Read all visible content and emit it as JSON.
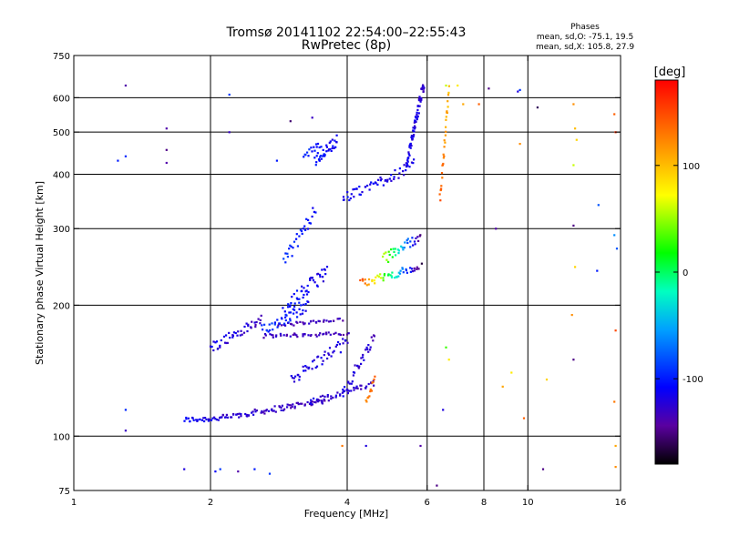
{
  "chart_data": {
    "type": "scatter",
    "title": "Tromsø 20141102 22:54:00–22:55:43",
    "subtitle": "RwPretec (8p)",
    "xlabel": "Frequency [MHz]",
    "ylabel": "Stationary phase Virtual Height [km]",
    "x_scale": "log",
    "y_scale": "log",
    "xlim": [
      1,
      16
    ],
    "ylim": [
      75,
      750
    ],
    "x_ticks": [
      1,
      2,
      4,
      6,
      8,
      10,
      16
    ],
    "y_ticks": [
      75,
      100,
      200,
      300,
      400,
      500,
      600,
      750
    ],
    "x_grid": [
      2,
      4,
      6,
      8,
      10
    ],
    "y_grid": [
      100,
      200,
      300,
      400,
      500,
      600
    ],
    "grid": true,
    "phase_info": {
      "heading": "Phases",
      "line1": "mean, sd,O: -75.1, 19.5",
      "line2": "mean, sd,X: 105.8, 27.9"
    },
    "colorbar": {
      "label": "[deg]",
      "range": [
        -180,
        180
      ],
      "ticks": [
        100,
        0,
        -100
      ],
      "colormap": "rainbow"
    },
    "clusters": [
      {
        "f0": 1.75,
        "f1": 2.1,
        "h0": 109,
        "h1": 110,
        "p0": -110,
        "p1": -120,
        "n": 30,
        "j": 0.015
      },
      {
        "f0": 2.1,
        "f1": 3.6,
        "h0": 110,
        "h1": 121,
        "p0": -125,
        "p1": -135,
        "n": 85,
        "j": 0.015
      },
      {
        "f0": 3.3,
        "f1": 4.6,
        "h0": 120,
        "h1": 132,
        "p0": -120,
        "p1": -130,
        "n": 45,
        "j": 0.015
      },
      {
        "f0": 3.0,
        "f1": 4.0,
        "h0": 135,
        "h1": 165,
        "p0": -115,
        "p1": -125,
        "n": 45,
        "j": 0.03
      },
      {
        "f0": 3.9,
        "f1": 4.6,
        "h0": 125,
        "h1": 170,
        "p0": -120,
        "p1": -130,
        "n": 35,
        "j": 0.03
      },
      {
        "f0": 4.4,
        "f1": 4.6,
        "h0": 120,
        "h1": 135,
        "p0": 120,
        "p1": 150,
        "n": 12,
        "j": 0.02
      },
      {
        "f0": 2.0,
        "f1": 2.6,
        "h0": 160,
        "h1": 185,
        "p0": -115,
        "p1": -130,
        "n": 45,
        "j": 0.03
      },
      {
        "f0": 2.6,
        "f1": 4.0,
        "h0": 170,
        "h1": 172,
        "p0": -130,
        "p1": -135,
        "n": 45,
        "j": 0.01
      },
      {
        "f0": 2.8,
        "f1": 3.9,
        "h0": 180,
        "h1": 185,
        "p0": -130,
        "p1": -135,
        "n": 35,
        "j": 0.01
      },
      {
        "f0": 2.6,
        "f1": 3.3,
        "h0": 175,
        "h1": 200,
        "p0": -90,
        "p1": -110,
        "n": 40,
        "j": 0.03
      },
      {
        "f0": 2.9,
        "f1": 3.6,
        "h0": 195,
        "h1": 240,
        "p0": -100,
        "p1": -120,
        "n": 50,
        "j": 0.04
      },
      {
        "f0": 2.9,
        "f1": 3.4,
        "h0": 250,
        "h1": 330,
        "p0": -90,
        "p1": -110,
        "n": 30,
        "j": 0.04
      },
      {
        "f0": 3.4,
        "f1": 3.8,
        "h0": 430,
        "h1": 480,
        "p0": -100,
        "p1": -115,
        "n": 35,
        "j": 0.03
      },
      {
        "f0": 3.2,
        "f1": 3.5,
        "h0": 440,
        "h1": 470,
        "p0": -95,
        "p1": -105,
        "n": 15,
        "j": 0.02
      },
      {
        "f0": 4.3,
        "f1": 5.8,
        "h0": 225,
        "h1": 245,
        "p0": 150,
        "p1": -160,
        "n": 50,
        "j": 0.02
      },
      {
        "f0": 4.8,
        "f1": 5.8,
        "h0": 255,
        "h1": 290,
        "p0": 60,
        "p1": -150,
        "n": 35,
        "j": 0.03
      },
      {
        "f0": 3.9,
        "f1": 5.6,
        "h0": 350,
        "h1": 420,
        "p0": -110,
        "p1": -120,
        "n": 55,
        "j": 0.03
      },
      {
        "f0": 5.4,
        "f1": 5.9,
        "h0": 420,
        "h1": 650,
        "p0": -115,
        "p1": -125,
        "n": 70,
        "j": 0.03
      },
      {
        "f0": 6.4,
        "f1": 6.7,
        "h0": 350,
        "h1": 620,
        "p0": 140,
        "p1": 100,
        "n": 30,
        "j": 0.03
      }
    ],
    "points": [
      {
        "f": 1.3,
        "h": 640,
        "p": -140
      },
      {
        "f": 1.25,
        "h": 430,
        "p": -100
      },
      {
        "f": 1.3,
        "h": 440,
        "p": -95
      },
      {
        "f": 1.3,
        "h": 103,
        "p": -130
      },
      {
        "f": 1.3,
        "h": 115,
        "p": -95
      },
      {
        "f": 1.6,
        "h": 510,
        "p": -140
      },
      {
        "f": 1.6,
        "h": 455,
        "p": -150
      },
      {
        "f": 1.6,
        "h": 425,
        "p": -140
      },
      {
        "f": 1.75,
        "h": 84,
        "p": -120
      },
      {
        "f": 2.05,
        "h": 83,
        "p": -110
      },
      {
        "f": 2.1,
        "h": 84,
        "p": -90
      },
      {
        "f": 2.3,
        "h": 83,
        "p": -140
      },
      {
        "f": 2.5,
        "h": 84,
        "p": -100
      },
      {
        "f": 2.7,
        "h": 82,
        "p": -90
      },
      {
        "f": 2.2,
        "h": 610,
        "p": -90
      },
      {
        "f": 2.2,
        "h": 500,
        "p": -130
      },
      {
        "f": 2.8,
        "h": 430,
        "p": -100
      },
      {
        "f": 3.0,
        "h": 530,
        "p": -155
      },
      {
        "f": 3.35,
        "h": 540,
        "p": -130
      },
      {
        "f": 3.9,
        "h": 95,
        "p": 130
      },
      {
        "f": 4.4,
        "h": 95,
        "p": -120
      },
      {
        "f": 5.8,
        "h": 95,
        "p": -140
      },
      {
        "f": 6.3,
        "h": 77,
        "p": -150
      },
      {
        "f": 6.5,
        "h": 115,
        "p": -120
      },
      {
        "f": 6.6,
        "h": 160,
        "p": 30
      },
      {
        "f": 6.7,
        "h": 150,
        "p": 80
      },
      {
        "f": 8.5,
        "h": 300,
        "p": -140
      },
      {
        "f": 8.8,
        "h": 130,
        "p": 110
      },
      {
        "f": 9.2,
        "h": 140,
        "p": 80
      },
      {
        "f": 9.5,
        "h": 620,
        "p": -120
      },
      {
        "f": 9.6,
        "h": 625,
        "p": -90
      },
      {
        "f": 9.6,
        "h": 470,
        "p": 120
      },
      {
        "f": 9.8,
        "h": 110,
        "p": 140
      },
      {
        "f": 10.5,
        "h": 570,
        "p": -160
      },
      {
        "f": 10.8,
        "h": 84,
        "p": -150
      },
      {
        "f": 11.0,
        "h": 135,
        "p": 90
      },
      {
        "f": 12.6,
        "h": 580,
        "p": 120
      },
      {
        "f": 12.7,
        "h": 510,
        "p": 100
      },
      {
        "f": 12.8,
        "h": 480,
        "p": 90
      },
      {
        "f": 12.6,
        "h": 420,
        "p": 60
      },
      {
        "f": 12.6,
        "h": 305,
        "p": -150
      },
      {
        "f": 12.7,
        "h": 245,
        "p": 90
      },
      {
        "f": 12.6,
        "h": 150,
        "p": -150
      },
      {
        "f": 12.5,
        "h": 190,
        "p": 120
      },
      {
        "f": 14.3,
        "h": 340,
        "p": -80
      },
      {
        "f": 14.2,
        "h": 240,
        "p": -100
      },
      {
        "f": 15.5,
        "h": 550,
        "p": 140
      },
      {
        "f": 15.6,
        "h": 500,
        "p": 160
      },
      {
        "f": 15.5,
        "h": 290,
        "p": -60
      },
      {
        "f": 15.7,
        "h": 270,
        "p": -80
      },
      {
        "f": 15.6,
        "h": 175,
        "p": 150
      },
      {
        "f": 15.5,
        "h": 120,
        "p": 130
      },
      {
        "f": 15.6,
        "h": 95,
        "p": 110
      },
      {
        "f": 15.6,
        "h": 85,
        "p": 120
      },
      {
        "f": 7.2,
        "h": 580,
        "p": 110
      },
      {
        "f": 7.8,
        "h": 580,
        "p": 140
      },
      {
        "f": 8.2,
        "h": 630,
        "p": -150
      },
      {
        "f": 7.0,
        "h": 640,
        "p": 80
      },
      {
        "f": 6.6,
        "h": 640,
        "p": 60
      }
    ]
  }
}
